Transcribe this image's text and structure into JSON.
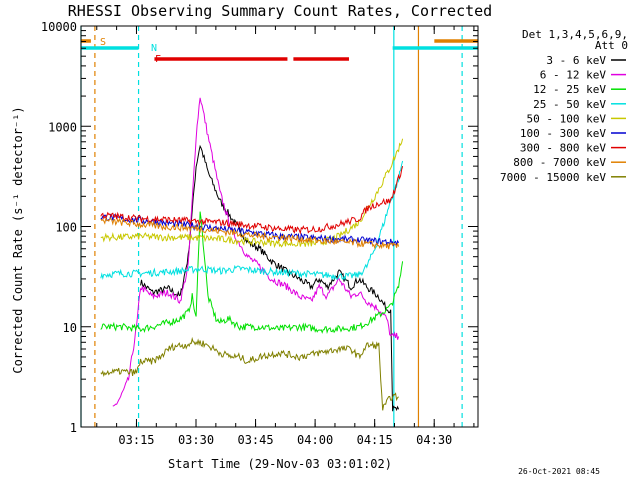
{
  "chart_data": {
    "type": "line",
    "title": "RHESSI Observing Summary Count Rates, Corrected",
    "xlabel": "Start Time (29-Nov-03 03:01:02)",
    "ylabel": "Corrected Count Rate (s⁻¹ detector⁻¹)",
    "y_scale": "log",
    "ylim": [
      1,
      10000
    ],
    "xlim_minutes": [
      0,
      100
    ],
    "x_ticks": [
      {
        "label": "03:15",
        "min": 13.97
      },
      {
        "label": "03:30",
        "min": 28.97
      },
      {
        "label": "03:45",
        "min": 43.97
      },
      {
        "label": "04:00",
        "min": 58.97
      },
      {
        "label": "04:15",
        "min": 73.97
      },
      {
        "label": "04:30",
        "min": 88.97
      }
    ],
    "y_ticks": [
      {
        "label": "1",
        "v": 1
      },
      {
        "label": "10",
        "v": 10
      },
      {
        "label": "100",
        "v": 100
      },
      {
        "label": "1000",
        "v": 1000
      },
      {
        "label": "10000",
        "v": 10000
      }
    ],
    "legend_header": [
      "Det 1,3,4,5,6,9,",
      "Att 0"
    ],
    "legend_position": "right",
    "timestamp": "26-Oct-2021 08:45",
    "series": [
      {
        "name": "3 - 6 keV",
        "color": "#000000",
        "x": [
          15,
          18,
          22,
          25,
          27,
          29,
          30,
          32,
          35,
          38,
          42,
          45,
          48,
          52,
          55,
          58,
          60,
          62,
          65,
          68,
          70,
          72,
          75,
          77,
          78,
          78.5,
          80
        ],
        "values": [
          28,
          22,
          24,
          20,
          50,
          400,
          650,
          350,
          180,
          120,
          70,
          60,
          45,
          35,
          30,
          25,
          30,
          25,
          35,
          25,
          30,
          25,
          20,
          15,
          15,
          1.5,
          1.5
        ]
      },
      {
        "name": "6 - 12 keV",
        "color": "#e000e0",
        "x": [
          8,
          10,
          12,
          14,
          15,
          18,
          22,
          25,
          27,
          29,
          30,
          32,
          35,
          38,
          42,
          45,
          48,
          52,
          55,
          58,
          60,
          62,
          65,
          68,
          70,
          72,
          75,
          77,
          78,
          80
        ],
        "values": [
          1.5,
          2,
          3,
          10,
          25,
          20,
          22,
          18,
          40,
          800,
          2000,
          800,
          220,
          90,
          50,
          40,
          30,
          25,
          20,
          18,
          25,
          20,
          30,
          20,
          22,
          18,
          15,
          12,
          8,
          8
        ]
      },
      {
        "name": "12 - 25 keV",
        "color": "#00e000",
        "x": [
          5,
          10,
          15,
          18,
          22,
          25,
          27,
          28,
          29,
          30,
          32,
          34,
          35,
          37,
          40,
          45,
          50,
          55,
          60,
          65,
          70,
          72,
          75,
          78,
          80,
          81
        ],
        "values": [
          10,
          10,
          9.5,
          10,
          11,
          12,
          14,
          20,
          12,
          150,
          20,
          12,
          11,
          12,
          10,
          10,
          9.5,
          10,
          9.5,
          9.5,
          10,
          11,
          13,
          16,
          25,
          45
        ]
      },
      {
        "name": "25 - 50 keV",
        "color": "#00e0e0",
        "x": [
          5,
          10,
          15,
          20,
          25,
          30,
          35,
          40,
          45,
          50,
          55,
          60,
          65,
          68,
          70,
          72,
          74,
          76,
          78,
          80,
          81
        ],
        "values": [
          33,
          34,
          34,
          35,
          36,
          38,
          36,
          38,
          36,
          35,
          34,
          33,
          32,
          32,
          33,
          40,
          60,
          100,
          180,
          300,
          450
        ]
      },
      {
        "name": "50 - 100 keV",
        "color": "#c8c800",
        "x": [
          5,
          10,
          15,
          20,
          25,
          30,
          35,
          40,
          45,
          50,
          55,
          60,
          65,
          70,
          72,
          74,
          76,
          78,
          80,
          81
        ],
        "values": [
          78,
          78,
          80,
          78,
          78,
          77,
          75,
          72,
          70,
          68,
          67,
          68,
          80,
          110,
          150,
          200,
          280,
          400,
          600,
          750
        ]
      },
      {
        "name": "100 - 300 keV",
        "color": "#0000d0",
        "x": [
          5,
          10,
          15,
          20,
          25,
          30,
          35,
          40,
          45,
          50,
          55,
          60,
          65,
          70,
          75,
          80
        ],
        "values": [
          125,
          120,
          115,
          110,
          105,
          100,
          95,
          90,
          85,
          80,
          78,
          76,
          75,
          73,
          71,
          69
        ]
      },
      {
        "name": "300 - 800 keV",
        "color": "#e00000",
        "x": [
          5,
          10,
          15,
          20,
          25,
          30,
          35,
          40,
          45,
          50,
          55,
          60,
          65,
          70,
          72,
          74,
          76,
          78,
          80,
          81
        ],
        "values": [
          130,
          125,
          120,
          118,
          115,
          112,
          110,
          105,
          100,
          95,
          92,
          95,
          105,
          120,
          150,
          165,
          175,
          180,
          300,
          400
        ]
      },
      {
        "name": "800 - 7000 keV",
        "color": "#e08000",
        "x": [
          5,
          10,
          15,
          20,
          25,
          30,
          35,
          40,
          45,
          50,
          55,
          60,
          65,
          70,
          75,
          80
        ],
        "values": [
          115,
          110,
          105,
          100,
          98,
          95,
          90,
          85,
          80,
          78,
          75,
          72,
          70,
          68,
          65,
          63
        ]
      },
      {
        "name": "7000 - 15000 keV",
        "color": "#808000",
        "x": [
          5,
          8,
          10,
          12,
          14,
          15,
          18,
          20,
          22,
          24,
          26,
          28,
          30,
          32,
          35,
          38,
          40,
          42,
          45,
          50,
          55,
          60,
          65,
          68,
          70,
          72,
          75,
          76,
          78,
          80
        ],
        "values": [
          3.5,
          3.5,
          3.6,
          3.5,
          3.5,
          4.5,
          4.5,
          5,
          6,
          6.5,
          6.5,
          7,
          7,
          6.5,
          5.5,
          5,
          5,
          4.5,
          5,
          5.5,
          5,
          5.5,
          6,
          6,
          5,
          6.5,
          6.5,
          1.5,
          2,
          2
        ]
      }
    ],
    "markers": [
      {
        "label": "S",
        "color": "#e08000"
      },
      {
        "label": "N",
        "color": "#00e0e0"
      },
      {
        "label": "F",
        "color": "#e00000"
      }
    ],
    "flag_bars": {
      "saa": {
        "color": "#e08000",
        "x": [
          [
            0,
            2.5
          ],
          [
            89,
            100
          ]
        ]
      },
      "night": {
        "color": "#00e0e0",
        "x": [
          [
            0,
            14.5
          ],
          [
            78.5,
            100
          ]
        ]
      },
      "flare": {
        "color": "#e00000",
        "x": [
          [
            18.5,
            52
          ],
          [
            53.5,
            67.5
          ]
        ]
      }
    },
    "vertical_lines": [
      {
        "color": "#00e0e0",
        "x": 0,
        "style": "solid"
      },
      {
        "color": "#e08000",
        "x": 3.5,
        "style": "dashed"
      },
      {
        "color": "#00e0e0",
        "x": 14.5,
        "style": "dashed"
      },
      {
        "color": "#00e0e0",
        "x": 78.8,
        "style": "solid"
      },
      {
        "color": "#e08000",
        "x": 85,
        "style": "solid"
      },
      {
        "color": "#00e0e0",
        "x": 96,
        "style": "dashed"
      }
    ]
  }
}
